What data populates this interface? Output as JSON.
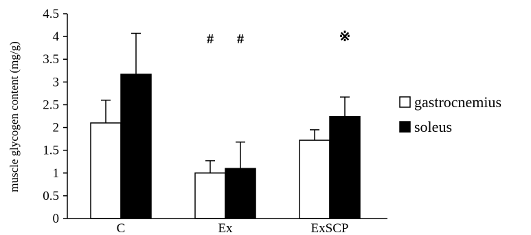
{
  "chart_data": {
    "type": "bar",
    "title": "",
    "xlabel": "",
    "ylabel": "muscle glycogen content (mg/g)",
    "ylim": [
      0,
      4.5
    ],
    "yticks": [
      "0",
      "0.5",
      "1",
      "1.5",
      "2",
      "2.5",
      "3",
      "3.5",
      "4",
      "4.5"
    ],
    "categories": [
      "C",
      "Ex",
      "ExSCP"
    ],
    "series": [
      {
        "name": "gastrocnemius",
        "fill": "#ffffff",
        "values": [
          2.1,
          1.0,
          1.72
        ],
        "errors": [
          0.5,
          0.27,
          0.23
        ]
      },
      {
        "name": "soleus",
        "fill": "#000000",
        "values": [
          3.17,
          1.1,
          2.24
        ],
        "errors": [
          0.9,
          0.58,
          0.43
        ]
      }
    ],
    "annotations": [
      {
        "text": "#",
        "category": "Ex",
        "series": "gastrocnemius",
        "y": 3.85
      },
      {
        "text": "#",
        "category": "Ex",
        "series": "soleus",
        "y": 3.85
      },
      {
        "text": "※",
        "category": "ExSCP",
        "series": "soleus",
        "y": 3.9
      }
    ],
    "legend_position": "right",
    "grid": false
  }
}
